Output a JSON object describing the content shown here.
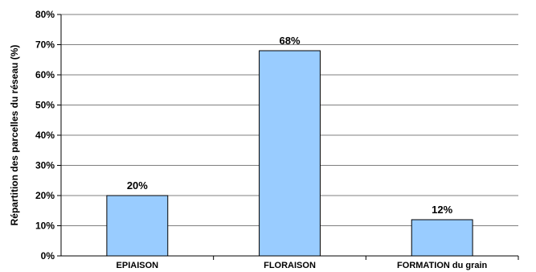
{
  "chart_data": {
    "type": "bar",
    "categories": [
      "EPIAISON",
      "FLORAISON",
      "FORMATION du grain"
    ],
    "values": [
      20,
      68,
      12
    ],
    "data_labels": [
      "20%",
      "68%",
      "12%"
    ],
    "title": "",
    "xlabel": "",
    "ylabel": "Répartition des parcelles du réseau (%)",
    "ylim": [
      0,
      80
    ],
    "yticks": [
      "0%",
      "10%",
      "20%",
      "30%",
      "40%",
      "50%",
      "60%",
      "70%",
      "80%"
    ],
    "grid": true,
    "legend": "none",
    "bar_color": "#99CCFF",
    "bar_border_color": "#000000"
  }
}
